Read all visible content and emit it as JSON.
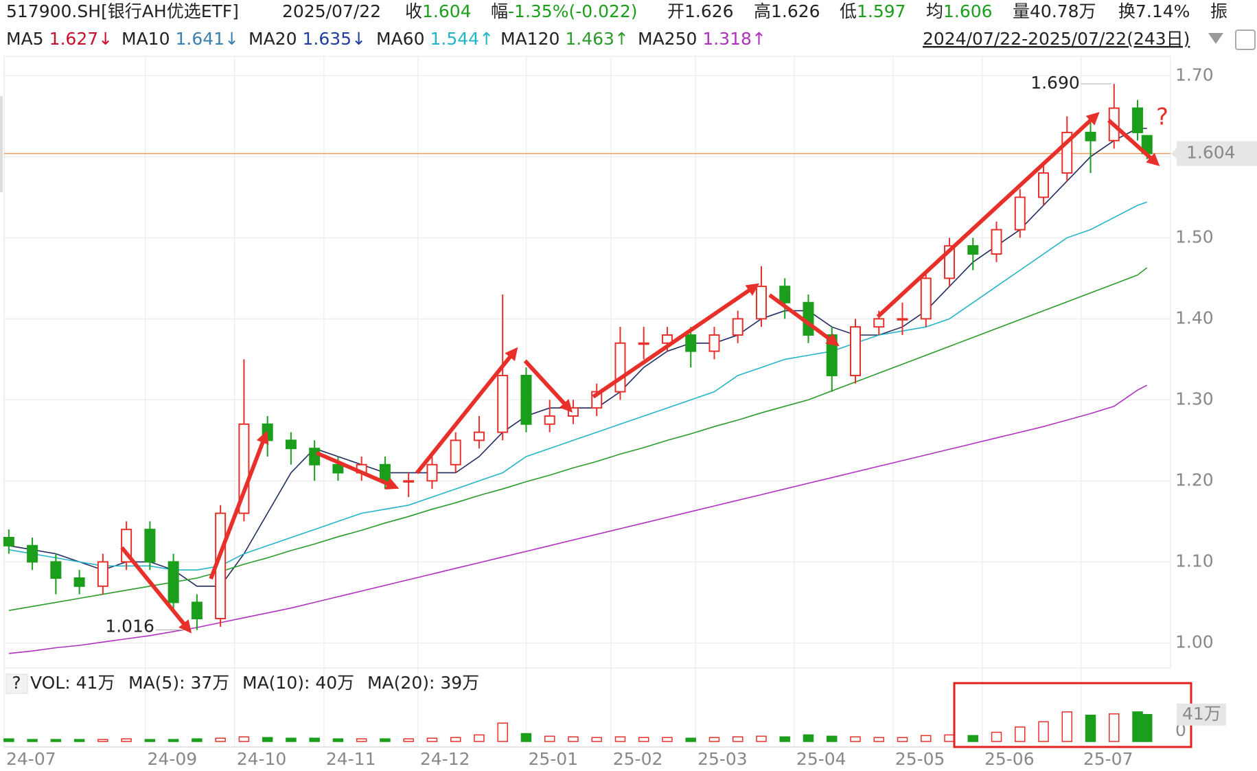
{
  "header": {
    "symbol": "517900.SH[银行AH优选ETF]",
    "date": "2025/07/22",
    "quote": [
      {
        "label": "收",
        "value": "1.604",
        "color": "#1b9e1b"
      },
      {
        "label": "幅",
        "value": "-1.35%(-0.022)",
        "color": "#1b9e1b"
      },
      {
        "label": "开",
        "value": "1.626",
        "color": "#222222"
      },
      {
        "label": "高",
        "value": "1.626",
        "color": "#222222"
      },
      {
        "label": "低",
        "value": "1.597",
        "color": "#1b9e1b"
      },
      {
        "label": "均",
        "value": "1.606",
        "color": "#1b9e1b"
      },
      {
        "label": "量",
        "value": "40.78万",
        "color": "#222222"
      },
      {
        "label": "换",
        "value": "7.14%",
        "color": "#222222"
      },
      {
        "label": "振"
      }
    ],
    "ma_header": [
      {
        "name": "MA5",
        "value": "1.627",
        "trend": "↓",
        "color": "#c8102e"
      },
      {
        "name": "MA10",
        "value": "1.641",
        "trend": "↓",
        "color": "#3a7fb0"
      },
      {
        "name": "MA20",
        "value": "1.635",
        "trend": "↓",
        "color": "#1f3ea0"
      },
      {
        "name": "MA60",
        "value": "1.544",
        "trend": "↑",
        "color": "#24b4c8"
      },
      {
        "name": "MA120",
        "value": "1.463",
        "trend": "↑",
        "color": "#2a9a2a"
      },
      {
        "name": "MA250",
        "value": "1.318",
        "trend": "↑",
        "color": "#b030c0"
      }
    ],
    "range": "2024/07/22-2025/07/22(243日)"
  },
  "chart_data": {
    "type": "candlestick",
    "up_color": "#e8302a",
    "down_color": "#1b9e1b",
    "grid": true,
    "x": [
      0,
      5,
      10,
      15,
      20,
      25,
      30,
      35,
      40,
      45,
      50,
      55,
      60,
      65,
      70,
      75,
      80,
      85,
      90,
      95,
      100,
      105,
      110,
      115,
      120,
      125,
      130,
      135,
      140,
      145,
      150,
      155,
      160,
      165,
      170,
      175,
      180,
      185,
      190,
      195,
      200,
      205,
      210,
      215,
      220,
      225,
      230,
      235,
      240,
      242
    ],
    "open": [
      1.13,
      1.12,
      1.1,
      1.08,
      1.07,
      1.1,
      1.14,
      1.1,
      1.05,
      1.03,
      1.16,
      1.27,
      1.25,
      1.24,
      1.22,
      1.21,
      1.22,
      1.2,
      1.2,
      1.22,
      1.25,
      1.26,
      1.33,
      1.27,
      1.28,
      1.29,
      1.31,
      1.37,
      1.37,
      1.38,
      1.36,
      1.38,
      1.4,
      1.44,
      1.42,
      1.38,
      1.33,
      1.39,
      1.4,
      1.4,
      1.45,
      1.49,
      1.48,
      1.51,
      1.55,
      1.58,
      1.63,
      1.62,
      1.66,
      1.626
    ],
    "high": [
      1.14,
      1.13,
      1.11,
      1.09,
      1.11,
      1.15,
      1.15,
      1.11,
      1.06,
      1.17,
      1.35,
      1.28,
      1.26,
      1.25,
      1.23,
      1.23,
      1.23,
      1.21,
      1.23,
      1.26,
      1.28,
      1.43,
      1.34,
      1.3,
      1.3,
      1.32,
      1.39,
      1.39,
      1.39,
      1.39,
      1.39,
      1.41,
      1.465,
      1.45,
      1.43,
      1.39,
      1.4,
      1.41,
      1.42,
      1.46,
      1.5,
      1.5,
      1.52,
      1.56,
      1.59,
      1.65,
      1.65,
      1.69,
      1.67,
      1.626
    ],
    "low": [
      1.11,
      1.09,
      1.06,
      1.06,
      1.06,
      1.09,
      1.09,
      1.04,
      1.016,
      1.02,
      1.15,
      1.23,
      1.22,
      1.2,
      1.2,
      1.2,
      1.19,
      1.18,
      1.19,
      1.21,
      1.24,
      1.25,
      1.26,
      1.26,
      1.27,
      1.28,
      1.3,
      1.35,
      1.36,
      1.34,
      1.35,
      1.37,
      1.39,
      1.4,
      1.37,
      1.31,
      1.32,
      1.38,
      1.38,
      1.39,
      1.44,
      1.46,
      1.47,
      1.5,
      1.54,
      1.57,
      1.58,
      1.61,
      1.62,
      1.597
    ],
    "close": [
      1.12,
      1.1,
      1.08,
      1.07,
      1.1,
      1.14,
      1.1,
      1.05,
      1.03,
      1.16,
      1.27,
      1.25,
      1.24,
      1.22,
      1.21,
      1.22,
      1.2,
      1.2,
      1.22,
      1.25,
      1.26,
      1.33,
      1.27,
      1.28,
      1.29,
      1.31,
      1.37,
      1.37,
      1.38,
      1.36,
      1.38,
      1.4,
      1.44,
      1.42,
      1.38,
      1.33,
      1.39,
      1.4,
      1.4,
      1.45,
      1.49,
      1.48,
      1.51,
      1.55,
      1.58,
      1.63,
      1.62,
      1.66,
      1.63,
      1.604
    ],
    "series": [
      {
        "name": "MA20",
        "color": "#1f2a60",
        "values": [
          1.12,
          1.115,
          1.11,
          1.1,
          1.09,
          1.1,
          1.1,
          1.09,
          1.07,
          1.07,
          1.11,
          1.16,
          1.21,
          1.24,
          1.23,
          1.22,
          1.21,
          1.21,
          1.21,
          1.21,
          1.23,
          1.26,
          1.28,
          1.29,
          1.29,
          1.29,
          1.31,
          1.34,
          1.36,
          1.37,
          1.37,
          1.38,
          1.4,
          1.41,
          1.41,
          1.39,
          1.38,
          1.38,
          1.39,
          1.41,
          1.44,
          1.47,
          1.49,
          1.51,
          1.54,
          1.57,
          1.6,
          1.62,
          1.635,
          1.635
        ]
      },
      {
        "name": "MA60",
        "color": "#24b4c8",
        "values": [
          1.115,
          1.11,
          1.105,
          1.1,
          1.095,
          1.095,
          1.095,
          1.09,
          1.09,
          1.095,
          1.11,
          1.12,
          1.13,
          1.14,
          1.15,
          1.16,
          1.165,
          1.17,
          1.18,
          1.19,
          1.2,
          1.21,
          1.23,
          1.24,
          1.25,
          1.26,
          1.27,
          1.28,
          1.29,
          1.3,
          1.31,
          1.33,
          1.34,
          1.35,
          1.355,
          1.36,
          1.37,
          1.38,
          1.385,
          1.39,
          1.4,
          1.42,
          1.44,
          1.46,
          1.48,
          1.5,
          1.51,
          1.525,
          1.54,
          1.544
        ]
      },
      {
        "name": "MA120",
        "color": "#2a9a2a",
        "values": [
          1.04,
          1.045,
          1.05,
          1.055,
          1.06,
          1.065,
          1.07,
          1.075,
          1.08,
          1.088,
          1.097,
          1.105,
          1.114,
          1.122,
          1.131,
          1.139,
          1.148,
          1.156,
          1.165,
          1.173,
          1.182,
          1.19,
          1.199,
          1.207,
          1.216,
          1.224,
          1.233,
          1.241,
          1.25,
          1.258,
          1.267,
          1.275,
          1.284,
          1.292,
          1.3,
          1.311,
          1.322,
          1.333,
          1.344,
          1.355,
          1.366,
          1.377,
          1.388,
          1.399,
          1.41,
          1.421,
          1.432,
          1.443,
          1.454,
          1.463
        ]
      },
      {
        "name": "MA250",
        "color": "#b030c0",
        "values": [
          0.987,
          0.99,
          0.994,
          0.997,
          1.001,
          1.005,
          1.009,
          1.014,
          1.019,
          1.025,
          1.031,
          1.037,
          1.043,
          1.05,
          1.057,
          1.064,
          1.071,
          1.078,
          1.085,
          1.092,
          1.099,
          1.106,
          1.113,
          1.12,
          1.127,
          1.134,
          1.141,
          1.148,
          1.155,
          1.162,
          1.169,
          1.176,
          1.183,
          1.19,
          1.197,
          1.204,
          1.211,
          1.218,
          1.225,
          1.232,
          1.239,
          1.246,
          1.253,
          1.26,
          1.267,
          1.275,
          1.283,
          1.292,
          1.312,
          1.318
        ]
      }
    ],
    "xlim": [
      -1,
      247
    ],
    "xticks": [
      {
        "value": -1,
        "label": "24-07"
      },
      {
        "value": 29,
        "label": "24-09"
      },
      {
        "value": 48,
        "label": "24-10"
      },
      {
        "value": 67,
        "label": "24-11"
      },
      {
        "value": 87,
        "label": "24-12"
      },
      {
        "value": 110,
        "label": "25-01"
      },
      {
        "value": 128,
        "label": "25-02"
      },
      {
        "value": 146,
        "label": "25-03"
      },
      {
        "value": 167,
        "label": "25-04"
      },
      {
        "value": 188,
        "label": "25-05"
      },
      {
        "value": 207,
        "label": "25-06"
      },
      {
        "value": 228,
        "label": "25-07"
      }
    ],
    "ylim": [
      0.969,
      1.724
    ],
    "yticks": [
      {
        "value": 1.0,
        "label": "1.00"
      },
      {
        "value": 1.1,
        "label": "1.10"
      },
      {
        "value": 1.2,
        "label": "1.20"
      },
      {
        "value": 1.3,
        "label": "1.30"
      },
      {
        "value": 1.4,
        "label": "1.40"
      },
      {
        "value": 1.5,
        "label": "1.50"
      },
      {
        "value": 1.6,
        "label": "1.60"
      },
      {
        "value": 1.7,
        "label": "1.70"
      }
    ],
    "current_price": 1.604,
    "current_price_color": "#e8a060",
    "low_mark": {
      "x": 40,
      "value": 1.016,
      "color": "#1b9e1b"
    },
    "high_mark": {
      "x": 235,
      "value": 1.69,
      "label": "1.690",
      "color": "#c8102e"
    },
    "annotations": [
      "?"
    ],
    "volume": {
      "help": "?",
      "header": [
        {
          "text": "VOL: 41万",
          "color": "#222222"
        },
        {
          "text": "MA(5): 37万",
          "color": "#222222"
        },
        {
          "text": "MA(10): 40万",
          "color": "#c8102e"
        },
        {
          "text": "MA(20): 39万",
          "color": "#1f3ea0"
        }
      ],
      "values": [
        4,
        3,
        3,
        3,
        3,
        4,
        3,
        3,
        4,
        5,
        7,
        6,
        5,
        5,
        4,
        4,
        4,
        4,
        5,
        6,
        10,
        28,
        12,
        8,
        7,
        6,
        7,
        6,
        6,
        5,
        6,
        7,
        8,
        7,
        10,
        8,
        7,
        6,
        6,
        9,
        10,
        9,
        14,
        22,
        30,
        45,
        40,
        42,
        45,
        41
      ],
      "ylim": [
        0,
        70
      ],
      "yticks": [
        0
      ],
      "current": {
        "value": 41,
        "label": "41万"
      }
    }
  }
}
